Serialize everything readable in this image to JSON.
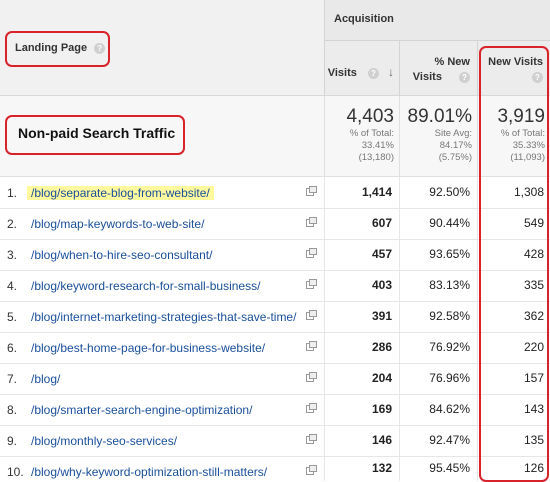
{
  "header": {
    "landing_page_label": "Landing Page",
    "acquisition_label": "Acquisition",
    "columns": {
      "visits": "Visits",
      "pct_new_visits_line1": "% New",
      "pct_new_visits_line2": "Visits",
      "new_visits": "New Visits"
    },
    "help_glyph": "?",
    "sort_arrow": "↓"
  },
  "segment_label": "Non-paid Search Traffic",
  "totals": {
    "visits": {
      "value": "4,403",
      "line1": "% of Total:",
      "line2": "33.41%",
      "line3": "(13,180)"
    },
    "pct_new": {
      "value": "89.01%",
      "line1": "Site Avg:",
      "line2": "84.17%",
      "line3": "(5.75%)"
    },
    "new_visits": {
      "value": "3,919",
      "line1": "% of Total:",
      "line2": "35.33%",
      "line3": "(11,093)"
    }
  },
  "rows": [
    {
      "num": "1.",
      "path": "/blog/separate-blog-from-website/",
      "visits": "1,414",
      "pct_new": "92.50%",
      "new_visits": "1,308"
    },
    {
      "num": "2.",
      "path": "/blog/map-keywords-to-web-site/",
      "visits": "607",
      "pct_new": "90.44%",
      "new_visits": "549"
    },
    {
      "num": "3.",
      "path": "/blog/when-to-hire-seo-consultant/",
      "visits": "457",
      "pct_new": "93.65%",
      "new_visits": "428"
    },
    {
      "num": "4.",
      "path": "/blog/keyword-research-for-small-business/",
      "visits": "403",
      "pct_new": "83.13%",
      "new_visits": "335"
    },
    {
      "num": "5.",
      "path": "/blog/internet-marketing-strategies-that-save-time/",
      "visits": "391",
      "pct_new": "92.58%",
      "new_visits": "362"
    },
    {
      "num": "6.",
      "path": "/blog/best-home-page-for-business-website/",
      "visits": "286",
      "pct_new": "76.92%",
      "new_visits": "220"
    },
    {
      "num": "7.",
      "path": "/blog/",
      "visits": "204",
      "pct_new": "76.96%",
      "new_visits": "157"
    },
    {
      "num": "8.",
      "path": "/blog/smarter-search-engine-optimization/",
      "visits": "169",
      "pct_new": "84.62%",
      "new_visits": "143"
    },
    {
      "num": "9.",
      "path": "/blog/monthly-seo-services/",
      "visits": "146",
      "pct_new": "92.47%",
      "new_visits": "135"
    },
    {
      "num": "10.",
      "path": "/blog/why-keyword-optimization-still-matters/",
      "visits": "132",
      "pct_new": "95.45%",
      "new_visits": "126"
    }
  ],
  "colors": {
    "annotation_red": "#d9232a",
    "link_blue": "#1a4f9a",
    "highlight_yellow": "#fffa9e"
  }
}
